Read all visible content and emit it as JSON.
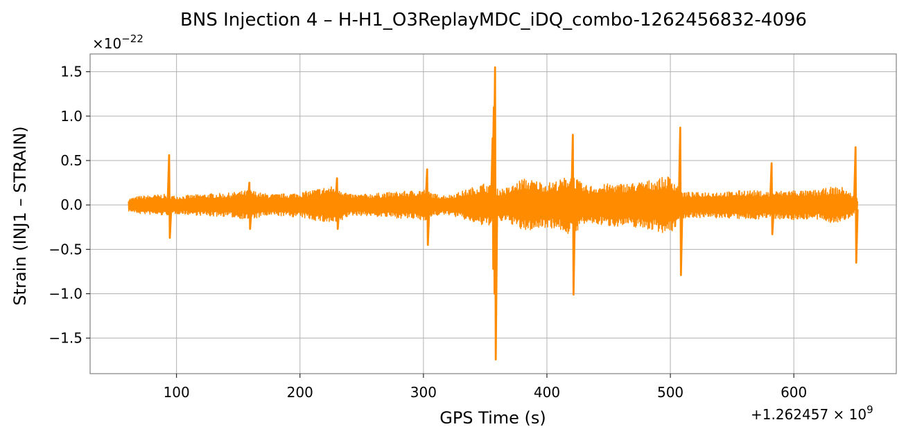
{
  "chart_data": {
    "type": "line",
    "title": "BNS Injection 4 – H-H1_O3ReplayMDC_iDQ_combo-1262456832-4096",
    "xlabel": "GPS Time (s)",
    "ylabel": "Strain (INJ1 – STRAIN)",
    "x_offset_label": "+1.262457 × 10",
    "x_offset_exponent": "9",
    "y_scale_label": "×10",
    "y_scale_exponent": "−22",
    "xlim": [
      30,
      683
    ],
    "ylim": [
      -1.9,
      1.7
    ],
    "xticks": [
      100,
      200,
      300,
      400,
      500,
      600
    ],
    "xtick_labels": [
      "100",
      "200",
      "300",
      "400",
      "500",
      "600"
    ],
    "yticks": [
      -1.5,
      -1.0,
      -0.5,
      0.0,
      0.5,
      1.0,
      1.5
    ],
    "ytick_labels": [
      "−1.5",
      "−1.0",
      "−0.5",
      "0.0",
      "0.5",
      "1.0",
      "1.5"
    ],
    "grid": true,
    "series": [
      {
        "color": "#ff8c00",
        "x_range": [
          61,
          652
        ],
        "envelope_x": [
          61,
          70,
          80,
          90,
          100,
          110,
          120,
          130,
          140,
          150,
          160,
          170,
          180,
          190,
          200,
          210,
          220,
          230,
          240,
          250,
          260,
          270,
          280,
          290,
          300,
          310,
          320,
          330,
          340,
          350,
          360,
          370,
          380,
          390,
          400,
          410,
          420,
          430,
          440,
          450,
          460,
          470,
          480,
          490,
          500,
          510,
          520,
          530,
          540,
          550,
          560,
          570,
          580,
          590,
          600,
          610,
          620,
          630,
          640,
          652
        ],
        "envelope_amp": [
          0.07,
          0.1,
          0.11,
          0.12,
          0.1,
          0.11,
          0.12,
          0.13,
          0.13,
          0.15,
          0.17,
          0.13,
          0.12,
          0.13,
          0.14,
          0.17,
          0.2,
          0.22,
          0.12,
          0.12,
          0.13,
          0.14,
          0.15,
          0.16,
          0.18,
          0.12,
          0.11,
          0.15,
          0.2,
          0.25,
          0.18,
          0.2,
          0.3,
          0.28,
          0.25,
          0.28,
          0.35,
          0.22,
          0.22,
          0.24,
          0.24,
          0.25,
          0.27,
          0.3,
          0.33,
          0.15,
          0.14,
          0.15,
          0.15,
          0.15,
          0.17,
          0.16,
          0.15,
          0.16,
          0.17,
          0.16,
          0.17,
          0.2,
          0.2,
          0.07
        ],
        "glitches": [
          {
            "x": 94,
            "max": 0.56,
            "min": -0.37
          },
          {
            "x": 159,
            "max": 0.25,
            "min": -0.27
          },
          {
            "x": 230,
            "max": 0.3,
            "min": -0.27
          },
          {
            "x": 303,
            "max": 0.4,
            "min": -0.45
          },
          {
            "x": 356,
            "max": 0.75,
            "min": -0.72
          },
          {
            "x": 357,
            "max": 1.1,
            "min": -1.0
          },
          {
            "x": 358,
            "max": 1.55,
            "min": -1.74
          },
          {
            "x": 421,
            "max": 0.79,
            "min": -1.01
          },
          {
            "x": 508,
            "max": 0.87,
            "min": -0.79
          },
          {
            "x": 582,
            "max": 0.47,
            "min": -0.33
          },
          {
            "x": 650,
            "max": 0.65,
            "min": -0.65
          }
        ]
      }
    ]
  }
}
